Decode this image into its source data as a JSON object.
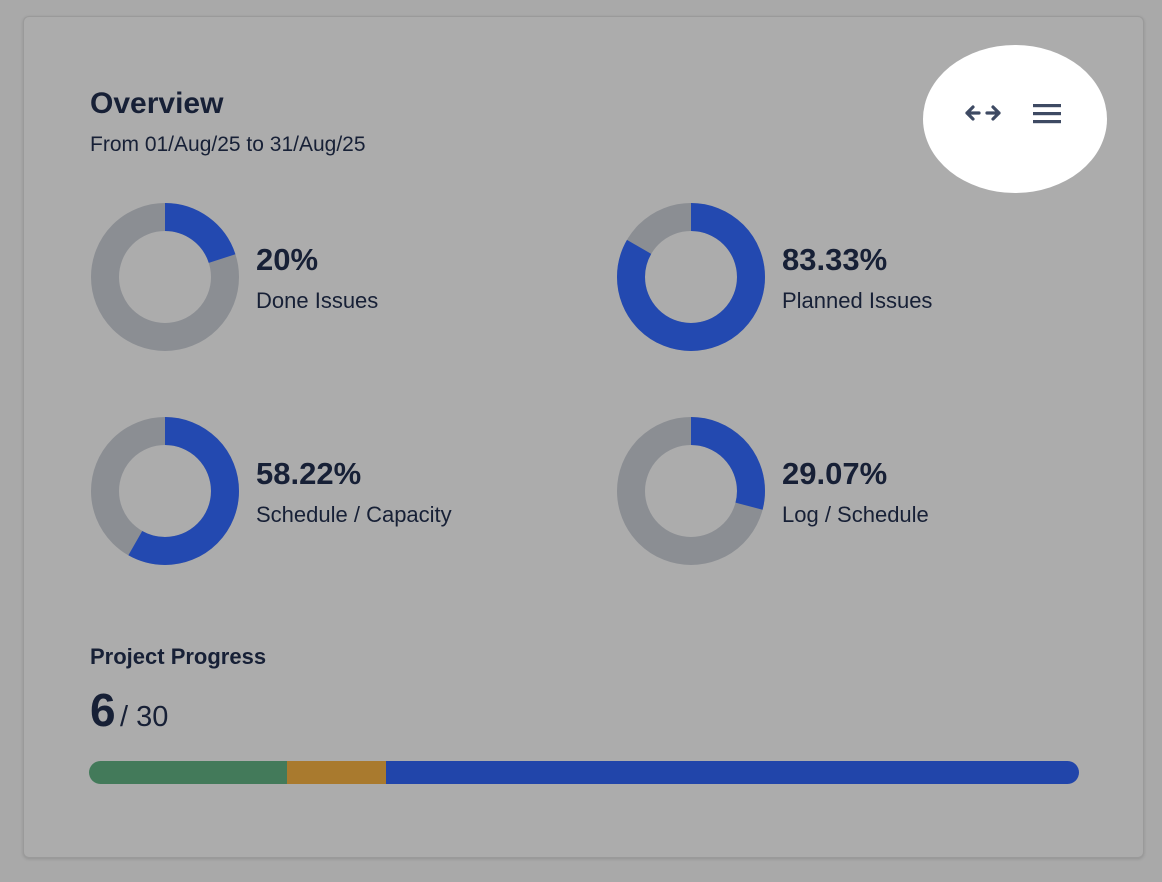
{
  "header": {
    "title": "Overview",
    "subtitle": "From 01/Aug/25 to 31/Aug/25"
  },
  "toolbar": {
    "expand_icon": "arrows-horizontal-icon",
    "menu_icon": "hamburger-menu-icon"
  },
  "colors": {
    "filled": "#2349b0",
    "remaining": "#8b8e93",
    "done": "#437a5a",
    "in_progress": "#a97a2e",
    "todo": "#2145aa"
  },
  "metrics": [
    {
      "value_text": "20%",
      "label": "Done Issues",
      "fraction": 0.2
    },
    {
      "value_text": "83.33%",
      "label": "Planned Issues",
      "fraction": 0.8333
    },
    {
      "value_text": "58.22%",
      "label": "Schedule / Capacity",
      "fraction": 0.5822
    },
    {
      "value_text": "29.07%",
      "label": "Log / Schedule",
      "fraction": 0.2907
    }
  ],
  "progress": {
    "title": "Project Progress",
    "done": "6",
    "total_text": "/ 30",
    "segments": [
      {
        "name": "done",
        "value": 6,
        "color": "#437a5a"
      },
      {
        "name": "in-progress",
        "value": 3,
        "color": "#a97a2e"
      },
      {
        "name": "todo",
        "value": 21,
        "color": "#2145aa"
      }
    ],
    "total": 30
  }
}
